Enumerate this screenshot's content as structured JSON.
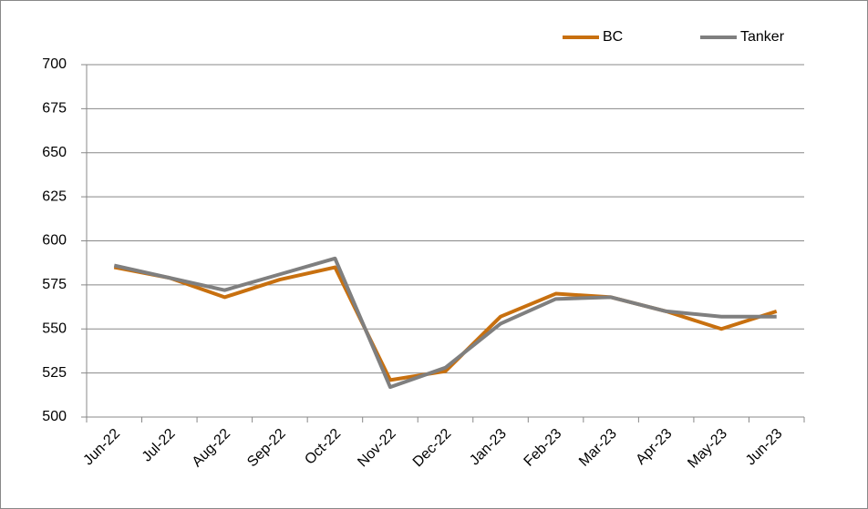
{
  "chart_data": {
    "type": "line",
    "categories": [
      "Jun-22",
      "Jul-22",
      "Aug-22",
      "Sep-22",
      "Oct-22",
      "Nov-22",
      "Dec-22",
      "Jan-23",
      "Feb-23",
      "Mar-23",
      "Apr-23",
      "May-23",
      "Jun-23"
    ],
    "series": [
      {
        "name": "BC",
        "color": "#c8700f",
        "values": [
          585,
          579,
          568,
          578,
          585,
          521,
          526,
          557,
          570,
          568,
          560,
          550,
          560
        ]
      },
      {
        "name": "Tanker",
        "color": "#7f7f7f",
        "values": [
          586,
          579,
          572,
          581,
          590,
          517,
          528,
          553,
          567,
          568,
          560,
          557,
          557
        ]
      }
    ],
    "ylim": [
      500,
      700
    ],
    "yticks": [
      500,
      525,
      550,
      575,
      600,
      625,
      650,
      675,
      700
    ],
    "grid": true,
    "legend": "top-right"
  }
}
